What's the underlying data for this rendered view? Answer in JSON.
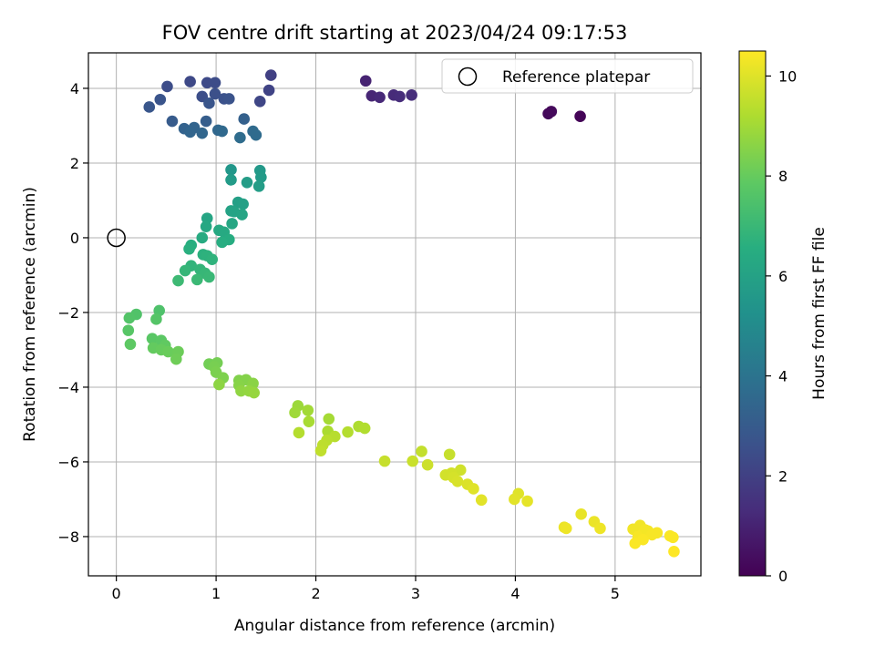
{
  "chart_data": {
    "type": "scatter",
    "title": "FOV centre drift starting at 2023/04/24 09:17:53",
    "xlabel": "Angular distance from reference (arcmin)",
    "ylabel": "Rotation from reference (arcmin)",
    "xlim": [
      -0.28,
      5.86
    ],
    "ylim": [
      -9.05,
      4.95
    ],
    "x_ticks": [
      0,
      1,
      2,
      3,
      4,
      5
    ],
    "y_ticks": [
      -8,
      -6,
      -4,
      -2,
      0,
      2,
      4
    ],
    "grid": true,
    "legend": {
      "placement": "top-right",
      "entries": [
        "Reference platepar"
      ]
    },
    "reference_point": {
      "x": 0,
      "y": 0,
      "name": "Reference platepar"
    },
    "colorbar": {
      "label": "Hours from first FF file",
      "range": [
        0,
        10.5
      ],
      "ticks": [
        0,
        2,
        4,
        6,
        8,
        10
      ],
      "colormap": "viridis"
    },
    "points": [
      [
        4.65,
        3.25,
        0.1
      ],
      [
        4.33,
        3.32,
        0.2
      ],
      [
        4.36,
        3.38,
        0.25
      ],
      [
        2.5,
        4.2,
        1.0
      ],
      [
        2.56,
        3.8,
        1.1
      ],
      [
        2.64,
        3.76,
        1.2
      ],
      [
        2.78,
        3.82,
        1.25
      ],
      [
        2.84,
        3.78,
        1.3
      ],
      [
        2.96,
        3.82,
        1.35
      ],
      [
        1.55,
        4.35,
        2.0
      ],
      [
        1.53,
        3.95,
        2.1
      ],
      [
        1.44,
        3.65,
        2.2
      ],
      [
        0.74,
        4.18,
        2.3
      ],
      [
        0.91,
        4.15,
        2.35
      ],
      [
        0.99,
        4.15,
        2.4
      ],
      [
        0.51,
        4.05,
        2.45
      ],
      [
        0.86,
        3.78,
        2.5
      ],
      [
        0.99,
        3.85,
        2.55
      ],
      [
        1.08,
        3.72,
        2.6
      ],
      [
        1.13,
        3.72,
        2.65
      ],
      [
        0.44,
        3.7,
        2.7
      ],
      [
        0.93,
        3.6,
        2.75
      ],
      [
        0.33,
        3.5,
        2.8
      ],
      [
        0.56,
        3.12,
        3.0
      ],
      [
        0.9,
        3.12,
        3.1
      ],
      [
        1.28,
        3.18,
        3.2
      ],
      [
        0.68,
        2.92,
        3.3
      ],
      [
        0.78,
        2.95,
        3.35
      ],
      [
        0.74,
        2.83,
        3.4
      ],
      [
        0.86,
        2.8,
        3.45
      ],
      [
        1.02,
        2.88,
        3.5
      ],
      [
        1.06,
        2.85,
        3.55
      ],
      [
        1.37,
        2.85,
        3.6
      ],
      [
        1.4,
        2.75,
        3.65
      ],
      [
        1.24,
        2.68,
        3.7
      ],
      [
        1.15,
        1.82,
        5.5
      ],
      [
        1.44,
        1.8,
        5.6
      ],
      [
        1.45,
        1.62,
        5.65
      ],
      [
        1.15,
        1.55,
        5.7
      ],
      [
        1.31,
        1.48,
        5.75
      ],
      [
        1.43,
        1.38,
        5.8
      ],
      [
        1.22,
        0.95,
        5.9
      ],
      [
        1.27,
        0.9,
        5.95
      ],
      [
        1.15,
        0.72,
        6.0
      ],
      [
        1.18,
        0.7,
        6.05
      ],
      [
        1.26,
        0.62,
        6.1
      ],
      [
        0.91,
        0.52,
        6.15
      ],
      [
        1.16,
        0.38,
        6.2
      ],
      [
        0.9,
        0.3,
        6.25
      ],
      [
        1.03,
        0.2,
        6.3
      ],
      [
        1.08,
        0.15,
        6.35
      ],
      [
        0.86,
        0.0,
        6.4
      ],
      [
        1.13,
        -0.05,
        6.45
      ],
      [
        1.06,
        -0.12,
        6.5
      ],
      [
        0.75,
        -0.2,
        6.55
      ],
      [
        0.73,
        -0.3,
        6.6
      ],
      [
        0.87,
        -0.45,
        6.65
      ],
      [
        0.91,
        -0.48,
        6.7
      ],
      [
        0.96,
        -0.58,
        6.75
      ],
      [
        0.75,
        -0.75,
        6.8
      ],
      [
        0.84,
        -0.85,
        6.85
      ],
      [
        0.69,
        -0.88,
        6.9
      ],
      [
        0.89,
        -0.95,
        6.95
      ],
      [
        0.93,
        -1.05,
        7.0
      ],
      [
        0.81,
        -1.12,
        7.05
      ],
      [
        0.62,
        -1.15,
        7.1
      ],
      [
        0.43,
        -1.95,
        7.5
      ],
      [
        0.2,
        -2.05,
        7.55
      ],
      [
        0.13,
        -2.15,
        7.6
      ],
      [
        0.4,
        -2.18,
        7.65
      ],
      [
        0.12,
        -2.48,
        7.7
      ],
      [
        0.36,
        -2.7,
        7.75
      ],
      [
        0.45,
        -2.75,
        7.8
      ],
      [
        0.14,
        -2.85,
        7.85
      ],
      [
        0.49,
        -2.88,
        7.9
      ],
      [
        0.37,
        -2.95,
        7.95
      ],
      [
        0.45,
        -3.0,
        8.0
      ],
      [
        0.52,
        -3.05,
        8.05
      ],
      [
        0.62,
        -3.05,
        8.1
      ],
      [
        0.6,
        -3.25,
        8.15
      ],
      [
        0.93,
        -3.38,
        8.2
      ],
      [
        1.01,
        -3.35,
        8.25
      ],
      [
        0.98,
        -3.45,
        8.3
      ],
      [
        1.0,
        -3.6,
        8.35
      ],
      [
        1.07,
        -3.75,
        8.4
      ],
      [
        1.23,
        -3.82,
        8.45
      ],
      [
        1.3,
        -3.8,
        8.5
      ],
      [
        1.23,
        -3.95,
        8.55
      ],
      [
        1.37,
        -3.9,
        8.6
      ],
      [
        1.03,
        -3.93,
        8.65
      ],
      [
        1.25,
        -4.1,
        8.7
      ],
      [
        1.33,
        -4.1,
        8.75
      ],
      [
        1.38,
        -4.15,
        8.8
      ],
      [
        1.82,
        -4.5,
        8.9
      ],
      [
        1.79,
        -4.68,
        8.95
      ],
      [
        1.92,
        -4.62,
        9.0
      ],
      [
        2.13,
        -4.85,
        9.05
      ],
      [
        1.93,
        -4.92,
        9.1
      ],
      [
        2.12,
        -5.18,
        9.15
      ],
      [
        2.43,
        -5.05,
        9.2
      ],
      [
        2.49,
        -5.1,
        9.25
      ],
      [
        2.32,
        -5.2,
        9.3
      ],
      [
        1.83,
        -5.22,
        9.3
      ],
      [
        2.19,
        -5.32,
        9.35
      ],
      [
        2.11,
        -5.42,
        9.4
      ],
      [
        2.07,
        -5.55,
        9.45
      ],
      [
        2.05,
        -5.7,
        9.5
      ],
      [
        3.06,
        -5.72,
        9.55
      ],
      [
        3.34,
        -5.8,
        9.6
      ],
      [
        2.69,
        -5.98,
        9.6
      ],
      [
        2.97,
        -5.98,
        9.65
      ],
      [
        3.12,
        -6.08,
        9.7
      ],
      [
        3.45,
        -6.22,
        9.75
      ],
      [
        3.3,
        -6.35,
        9.8
      ],
      [
        3.36,
        -6.3,
        9.8
      ],
      [
        3.38,
        -6.42,
        9.85
      ],
      [
        3.42,
        -6.52,
        9.9
      ],
      [
        3.52,
        -6.6,
        9.95
      ],
      [
        3.58,
        -6.72,
        10.0
      ],
      [
        4.03,
        -6.85,
        10.0
      ],
      [
        3.99,
        -7.0,
        10.05
      ],
      [
        3.66,
        -7.02,
        10.05
      ],
      [
        4.12,
        -7.05,
        10.1
      ],
      [
        4.66,
        -7.4,
        10.15
      ],
      [
        4.79,
        -7.6,
        10.2
      ],
      [
        4.49,
        -7.75,
        10.2
      ],
      [
        4.51,
        -7.78,
        10.25
      ],
      [
        4.85,
        -7.78,
        10.25
      ],
      [
        5.25,
        -7.7,
        10.3
      ],
      [
        5.18,
        -7.8,
        10.3
      ],
      [
        5.3,
        -7.82,
        10.35
      ],
      [
        5.33,
        -7.85,
        10.35
      ],
      [
        5.42,
        -7.9,
        10.4
      ],
      [
        5.37,
        -7.95,
        10.4
      ],
      [
        5.23,
        -8.0,
        10.4
      ],
      [
        5.55,
        -7.98,
        10.45
      ],
      [
        5.58,
        -8.02,
        10.45
      ],
      [
        5.28,
        -8.08,
        10.45
      ],
      [
        5.2,
        -8.18,
        10.45
      ],
      [
        5.59,
        -8.4,
        10.5
      ]
    ]
  }
}
